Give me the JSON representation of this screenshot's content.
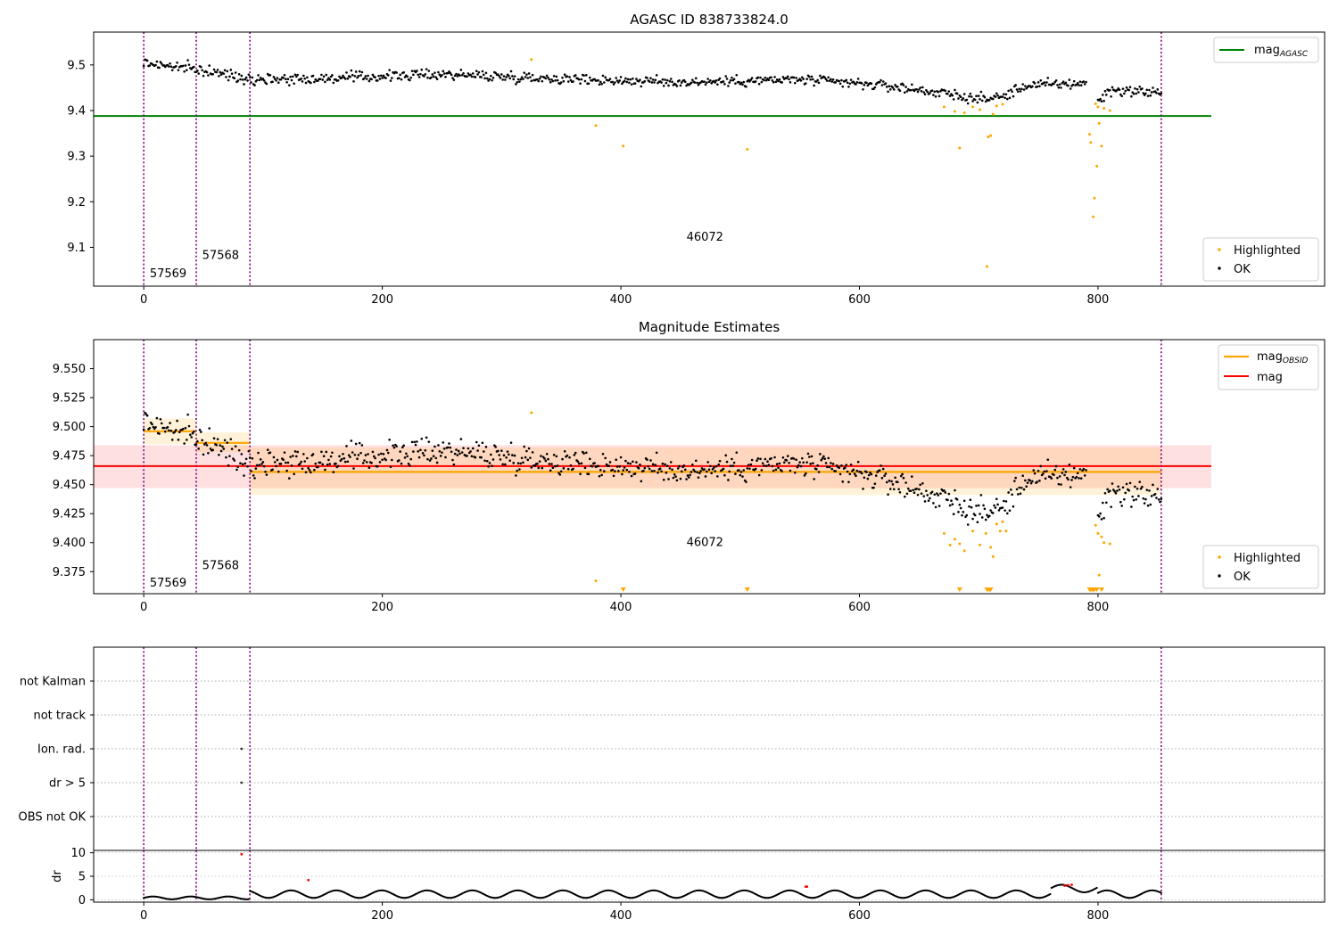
{
  "chart_data": [
    {
      "id": "agasc",
      "type": "scatter",
      "title": "AGASC ID 838733824.0",
      "xlim": [
        -42,
        990
      ],
      "ylim": [
        9.015,
        9.572
      ],
      "xticks": [
        0,
        200,
        400,
        600,
        800
      ],
      "yticks": [
        9.1,
        9.2,
        9.3,
        9.4,
        9.5
      ],
      "ytick_labels": [
        "9.1",
        "9.2",
        "9.3",
        "9.4",
        "9.5"
      ],
      "reference_line": {
        "name": "mag",
        "subscript": "AGASC",
        "y": 9.388,
        "x_range": [
          -42,
          895
        ],
        "color": "#008000"
      },
      "obsid_boundaries": [
        0,
        44,
        89,
        853
      ],
      "obsid_labels": [
        {
          "text": "57569",
          "x": 5,
          "y": 9.035
        },
        {
          "text": "57568",
          "x": 49,
          "y": 9.075
        },
        {
          "text": "46072",
          "x": 455,
          "y": 9.115
        }
      ],
      "series": [
        {
          "name": "Highlighted",
          "color": "#ffa500"
        },
        {
          "name": "OK",
          "color": "#000000"
        }
      ],
      "highlighted_points": [
        {
          "x": 325,
          "y": 9.512
        },
        {
          "x": 379,
          "y": 9.367
        },
        {
          "x": 402,
          "y": 9.322
        },
        {
          "x": 506,
          "y": 9.315
        },
        {
          "x": 671,
          "y": 9.408
        },
        {
          "x": 680,
          "y": 9.398
        },
        {
          "x": 684,
          "y": 9.318
        },
        {
          "x": 688,
          "y": 9.395
        },
        {
          "x": 695,
          "y": 9.408
        },
        {
          "x": 701,
          "y": 9.402
        },
        {
          "x": 707,
          "y": 9.058
        },
        {
          "x": 708,
          "y": 9.342
        },
        {
          "x": 710,
          "y": 9.345
        },
        {
          "x": 712,
          "y": 9.392
        },
        {
          "x": 715,
          "y": 9.41
        },
        {
          "x": 720,
          "y": 9.414
        },
        {
          "x": 793,
          "y": 9.348
        },
        {
          "x": 794,
          "y": 9.33
        },
        {
          "x": 796,
          "y": 9.167
        },
        {
          "x": 797,
          "y": 9.208
        },
        {
          "x": 798,
          "y": 9.415
        },
        {
          "x": 799,
          "y": 9.278
        },
        {
          "x": 800,
          "y": 9.408
        },
        {
          "x": 801,
          "y": 9.372
        },
        {
          "x": 803,
          "y": 9.322
        },
        {
          "x": 805,
          "y": 9.405
        },
        {
          "x": 810,
          "y": 9.4
        }
      ],
      "ok_trend": [
        [
          0,
          9.505
        ],
        [
          44,
          9.49
        ],
        [
          89,
          9.47
        ],
        [
          150,
          9.47
        ],
        [
          250,
          9.48
        ],
        [
          350,
          9.47
        ],
        [
          450,
          9.462
        ],
        [
          550,
          9.468
        ],
        [
          620,
          9.455
        ],
        [
          660,
          9.442
        ],
        [
          700,
          9.425
        ],
        [
          720,
          9.43
        ],
        [
          740,
          9.455
        ],
        [
          790,
          9.46
        ],
        [
          800,
          9.42
        ],
        [
          810,
          9.445
        ],
        [
          853,
          9.44
        ]
      ],
      "ok_gaps": [
        [
          791,
          799
        ]
      ]
    },
    {
      "id": "estimates",
      "type": "scatter",
      "title": "Magnitude Estimates",
      "xlim": [
        -42,
        990
      ],
      "ylim": [
        9.356,
        9.575
      ],
      "xticks": [
        0,
        200,
        400,
        600,
        800
      ],
      "yticks": [
        9.375,
        9.4,
        9.425,
        9.45,
        9.475,
        9.5,
        9.525,
        9.55
      ],
      "ytick_labels": [
        "9.375",
        "9.400",
        "9.425",
        "9.450",
        "9.475",
        "9.500",
        "9.525",
        "9.550"
      ],
      "mag_line": {
        "name": "mag",
        "y": 9.466,
        "band": [
          9.447,
          9.484
        ],
        "x_range": [
          -42,
          895
        ],
        "color": "#ff0000"
      },
      "obsid_mags": {
        "name": "mag",
        "subscript": "OBSID",
        "color": "#ffa500",
        "segments": [
          {
            "x0": 0,
            "x1": 44,
            "y": 9.496,
            "band": [
              9.485,
              9.507
            ]
          },
          {
            "x0": 44,
            "x1": 89,
            "y": 9.486,
            "band": [
              9.478,
              9.495
            ]
          },
          {
            "x0": 89,
            "x1": 853,
            "y": 9.461,
            "band": [
              9.441,
              9.482
            ]
          }
        ]
      },
      "obsid_boundaries": [
        0,
        44,
        89,
        853
      ],
      "obsid_labels": [
        {
          "text": "57569",
          "x": 5,
          "y": 9.362
        },
        {
          "text": "57568",
          "x": 49,
          "y": 9.377
        },
        {
          "text": "46072",
          "x": 455,
          "y": 9.397
        }
      ],
      "series": [
        {
          "name": "Highlighted",
          "color": "#ffa500"
        },
        {
          "name": "OK",
          "color": "#000000"
        }
      ],
      "highlighted_points": [
        {
          "x": 325,
          "y": 9.512
        },
        {
          "x": 379,
          "y": 9.367
        },
        {
          "x": 671,
          "y": 9.408
        },
        {
          "x": 676,
          "y": 9.398
        },
        {
          "x": 680,
          "y": 9.403
        },
        {
          "x": 684,
          "y": 9.399
        },
        {
          "x": 688,
          "y": 9.393
        },
        {
          "x": 695,
          "y": 9.41
        },
        {
          "x": 701,
          "y": 9.398
        },
        {
          "x": 706,
          "y": 9.408
        },
        {
          "x": 710,
          "y": 9.396
        },
        {
          "x": 712,
          "y": 9.388
        },
        {
          "x": 715,
          "y": 9.416
        },
        {
          "x": 718,
          "y": 9.41
        },
        {
          "x": 720,
          "y": 9.418
        },
        {
          "x": 723,
          "y": 9.41
        },
        {
          "x": 798,
          "y": 9.415
        },
        {
          "x": 800,
          "y": 9.408
        },
        {
          "x": 801,
          "y": 9.372
        },
        {
          "x": 803,
          "y": 9.405
        },
        {
          "x": 805,
          "y": 9.4
        },
        {
          "x": 810,
          "y": 9.399
        }
      ],
      "below_range_markers": [
        402,
        506,
        684,
        707,
        708,
        709,
        710,
        793,
        794,
        795,
        796,
        797,
        799,
        803
      ],
      "ok_trend": [
        [
          0,
          9.505
        ],
        [
          44,
          9.49
        ],
        [
          89,
          9.47
        ],
        [
          150,
          9.47
        ],
        [
          250,
          9.48
        ],
        [
          350,
          9.47
        ],
        [
          450,
          9.462
        ],
        [
          550,
          9.468
        ],
        [
          620,
          9.455
        ],
        [
          660,
          9.442
        ],
        [
          700,
          9.425
        ],
        [
          720,
          9.43
        ],
        [
          740,
          9.455
        ],
        [
          790,
          9.46
        ],
        [
          800,
          9.42
        ],
        [
          810,
          9.445
        ],
        [
          853,
          9.44
        ]
      ],
      "ok_gaps": [
        [
          791,
          799
        ]
      ]
    },
    {
      "id": "flags",
      "type": "scatter",
      "xlim": [
        -42,
        990
      ],
      "categories": [
        "OBS not OK",
        "dr > 5",
        "Ion. rad.",
        "not track",
        "not Kalman"
      ],
      "obsid_boundaries": [
        0,
        44,
        89,
        853
      ],
      "flagged_points": [
        {
          "category": "dr > 5",
          "x": 82
        },
        {
          "category": "Ion. rad.",
          "x": 82
        }
      ]
    },
    {
      "id": "dr",
      "type": "scatter",
      "ylabel": "dr",
      "xlim": [
        -42,
        990
      ],
      "ylim": [
        -0.5,
        10.5
      ],
      "xticks": [
        0,
        200,
        400,
        600,
        800
      ],
      "yticks": [
        0,
        5,
        10
      ],
      "ytick_labels": [
        "0",
        "5",
        "10"
      ],
      "obsid_boundaries": [
        0,
        44,
        89,
        853
      ],
      "red_points": [
        {
          "x": 82,
          "y": 9.7
        },
        {
          "x": 138,
          "y": 4.2
        },
        {
          "x": 555,
          "y": 2.8
        },
        {
          "x": 556,
          "y": 2.8
        },
        {
          "x": 772,
          "y": 3.0
        },
        {
          "x": 775,
          "y": 3.1
        },
        {
          "x": 778,
          "y": 3.2
        }
      ],
      "dr_model": {
        "mean": 1.2,
        "oscillation_amplitude": 0.8,
        "oscillation_period": 38,
        "points": 853
      }
    }
  ],
  "legend_labels": {
    "highlighted": "Highlighted",
    "ok": "OK"
  }
}
